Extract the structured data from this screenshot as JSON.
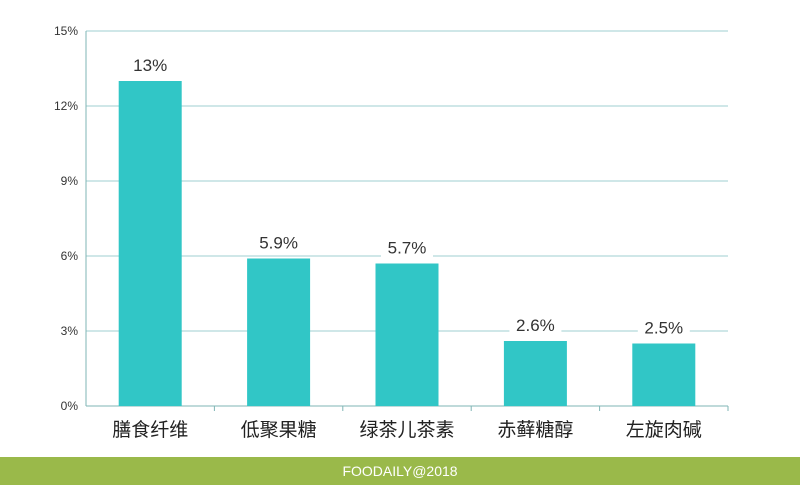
{
  "chart_data": {
    "type": "bar",
    "categories": [
      "膳食纤维",
      "低聚果糖",
      "绿茶儿茶素",
      "赤藓糖醇",
      "左旋肉碱"
    ],
    "values": [
      13,
      5.9,
      5.7,
      2.6,
      2.5
    ],
    "data_labels": [
      "13%",
      "5.9%",
      "5.7%",
      "2.6%",
      "2.5%"
    ],
    "yticks": [
      0,
      3,
      6,
      9,
      12,
      15
    ],
    "ytick_labels": [
      "0%",
      "3%",
      "6%",
      "9%",
      "12%",
      "15%"
    ],
    "ylim": [
      0,
      15
    ],
    "title": "",
    "xlabel": "",
    "ylabel": "",
    "grid": true,
    "legend": "none",
    "bar_color": "#31c6c6",
    "grid_color": "#9fcfd0"
  },
  "footer": {
    "text": "FOODAILY@2018",
    "color": "#9ab94a"
  }
}
